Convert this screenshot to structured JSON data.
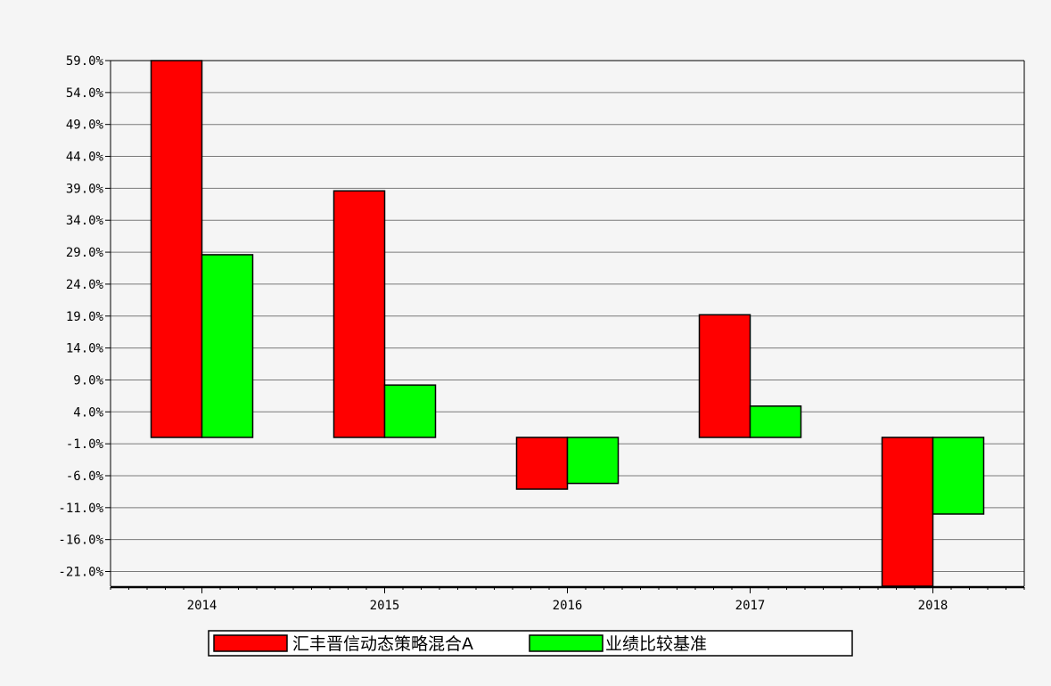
{
  "chart_data": {
    "type": "bar",
    "categories": [
      "2014",
      "2015",
      "2016",
      "2017",
      "2018"
    ],
    "series": [
      {
        "name": "汇丰晋信动态策略混合A",
        "color": "#ff0000",
        "values": [
          59.0,
          38.6,
          -8.1,
          19.2,
          -23.7
        ]
      },
      {
        "name": "业绩比较基准",
        "color": "#00ff00",
        "values": [
          28.6,
          8.2,
          -7.2,
          4.9,
          -12.0
        ]
      }
    ],
    "y_ticks": [
      "59.0%",
      "54.0%",
      "49.0%",
      "44.0%",
      "39.0%",
      "34.0%",
      "29.0%",
      "24.0%",
      "19.0%",
      "14.0%",
      "9.0%",
      "4.0%",
      "-1.0%",
      "-6.0%",
      "-11.0%",
      "-16.0%",
      "-21.0%"
    ],
    "ylim": [
      -23.3,
      59.0
    ],
    "baseline": 0,
    "grid": true,
    "legend_position": "bottom-center",
    "title": "",
    "xlabel": "",
    "ylabel": ""
  }
}
